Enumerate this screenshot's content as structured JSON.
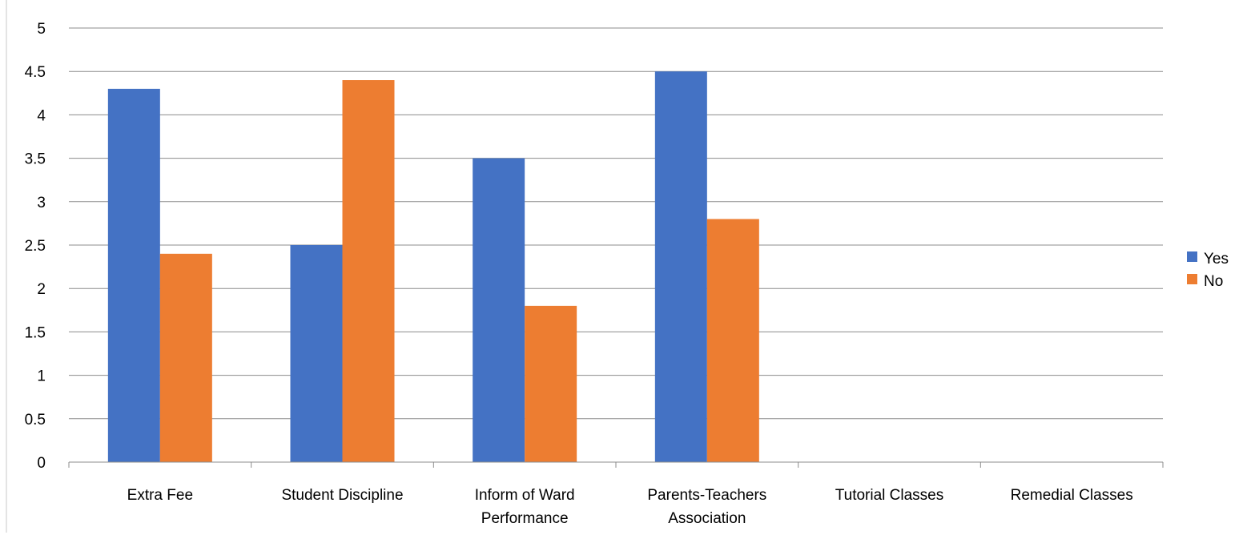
{
  "chart_data": {
    "type": "bar",
    "title": "",
    "xlabel": "",
    "ylabel": "",
    "categories": [
      [
        "Extra Fee"
      ],
      [
        "Student Discipline"
      ],
      [
        "Inform of Ward",
        "Performance"
      ],
      [
        "Parents-Teachers",
        "Association"
      ],
      [
        "Tutorial Classes"
      ],
      [
        "Remedial Classes"
      ]
    ],
    "series": [
      {
        "name": "Yes",
        "color": "#4472C4",
        "values": [
          4.3,
          2.5,
          3.5,
          4.5,
          0,
          0
        ]
      },
      {
        "name": "No",
        "color": "#ED7D31",
        "values": [
          2.4,
          4.4,
          1.8,
          2.8,
          0,
          0
        ]
      }
    ],
    "ylim": [
      0,
      5
    ],
    "yticks": [
      "0",
      "0.5",
      "1",
      "1.5",
      "2",
      "2.5",
      "3",
      "3.5",
      "4",
      "4.5",
      "5"
    ],
    "grid": true,
    "legend_position": "right"
  }
}
